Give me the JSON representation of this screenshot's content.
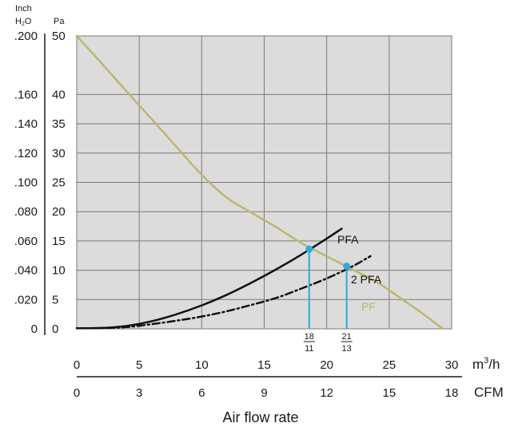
{
  "chart_data": {
    "type": "line",
    "left_axis": {
      "header_line1": "Inch",
      "header_line2_main": "H",
      "header_line2_sub": "2",
      "header_line2_end": "O",
      "ticks": [
        ".200",
        ".160",
        ".140",
        ".120",
        ".100",
        ".080",
        ".060",
        ".040",
        ".020",
        "0"
      ]
    },
    "yaxis": {
      "label": "Pa",
      "ticks": [
        "50",
        "40",
        "35",
        "30",
        "25",
        "20",
        "15",
        "10",
        "5",
        "0"
      ],
      "ylim": [
        0,
        50
      ]
    },
    "xaxis_m3h": {
      "unit_main": "m",
      "unit_sup": "3",
      "unit_end": "/h",
      "ticks": [
        "0",
        "5",
        "10",
        "15",
        "20",
        "25",
        "30"
      ],
      "xlim": [
        0,
        30
      ]
    },
    "xaxis_cfm": {
      "unit": "CFM",
      "ticks": [
        "0",
        "3",
        "6",
        "9",
        "12",
        "15",
        "18"
      ]
    },
    "xlabel": "Air flow rate",
    "grid": true,
    "series": [
      {
        "name": "PF",
        "color": "#bdb76b",
        "style": "solid",
        "x": [
          0,
          2,
          4,
          6,
          8,
          10,
          12,
          14,
          16,
          18,
          20,
          22,
          24,
          26,
          28,
          29.3
        ],
        "y": [
          50,
          45.3,
          40.5,
          35.8,
          31,
          26.3,
          22.4,
          19.8,
          17.3,
          14.6,
          12.4,
          10.2,
          8,
          5.1,
          2.1,
          0
        ]
      },
      {
        "name": "PFA",
        "color": "#111111",
        "style": "solid",
        "x": [
          0,
          2,
          4,
          6,
          8,
          10,
          12,
          14,
          16,
          18,
          20,
          21.2
        ],
        "y": [
          0.1,
          0.15,
          0.5,
          1.3,
          2.5,
          4,
          5.8,
          7.9,
          10.2,
          12.7,
          15.4,
          17.1
        ]
      },
      {
        "name": "2 PFA",
        "color": "#111111",
        "style": "dashdot",
        "x": [
          0,
          2,
          4,
          6,
          8,
          10,
          12,
          14,
          16,
          18,
          20,
          22,
          23.5
        ],
        "y": [
          0.1,
          0.12,
          0.3,
          0.8,
          1.4,
          2.1,
          3,
          4.1,
          5.3,
          6.9,
          8.6,
          10.6,
          12.4
        ]
      }
    ],
    "operating_points": [
      {
        "x": 18.6,
        "y": 13.6,
        "color": "#29abe2",
        "label_num": "18",
        "label_den": "11"
      },
      {
        "x": 21.6,
        "y": 10.7,
        "color": "#29abe2",
        "label_num": "21",
        "label_den": "13"
      }
    ]
  }
}
